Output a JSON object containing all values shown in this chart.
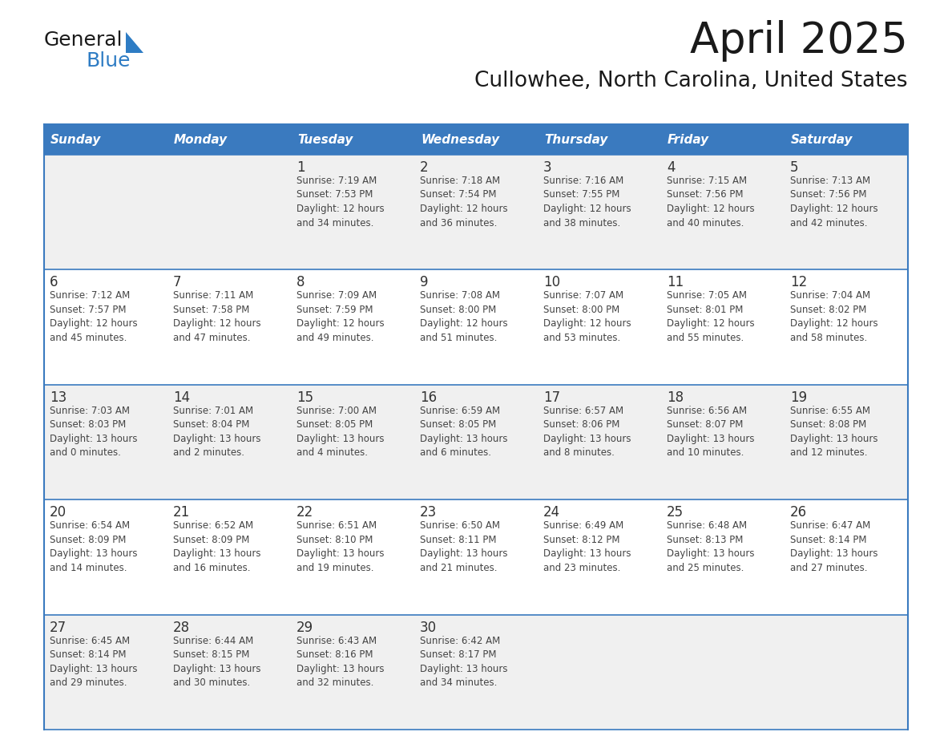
{
  "title": "April 2025",
  "subtitle": "Cullowhee, North Carolina, United States",
  "days_of_week": [
    "Sunday",
    "Monday",
    "Tuesday",
    "Wednesday",
    "Thursday",
    "Friday",
    "Saturday"
  ],
  "header_bg_color": "#3a7abf",
  "header_text_color": "#ffffff",
  "cell_bg_even": "#f0f0f0",
  "cell_bg_odd": "#ffffff",
  "cell_border_color": "#3a7abf",
  "day_number_color": "#333333",
  "cell_text_color": "#444444",
  "logo_general_color": "#1a1a1a",
  "logo_blue_color": "#2e7cc4",
  "title_color": "#1a1a1a",
  "subtitle_color": "#1a1a1a",
  "calendar_data": [
    [
      {
        "day": null,
        "info": ""
      },
      {
        "day": null,
        "info": ""
      },
      {
        "day": 1,
        "info": "Sunrise: 7:19 AM\nSunset: 7:53 PM\nDaylight: 12 hours\nand 34 minutes."
      },
      {
        "day": 2,
        "info": "Sunrise: 7:18 AM\nSunset: 7:54 PM\nDaylight: 12 hours\nand 36 minutes."
      },
      {
        "day": 3,
        "info": "Sunrise: 7:16 AM\nSunset: 7:55 PM\nDaylight: 12 hours\nand 38 minutes."
      },
      {
        "day": 4,
        "info": "Sunrise: 7:15 AM\nSunset: 7:56 PM\nDaylight: 12 hours\nand 40 minutes."
      },
      {
        "day": 5,
        "info": "Sunrise: 7:13 AM\nSunset: 7:56 PM\nDaylight: 12 hours\nand 42 minutes."
      }
    ],
    [
      {
        "day": 6,
        "info": "Sunrise: 7:12 AM\nSunset: 7:57 PM\nDaylight: 12 hours\nand 45 minutes."
      },
      {
        "day": 7,
        "info": "Sunrise: 7:11 AM\nSunset: 7:58 PM\nDaylight: 12 hours\nand 47 minutes."
      },
      {
        "day": 8,
        "info": "Sunrise: 7:09 AM\nSunset: 7:59 PM\nDaylight: 12 hours\nand 49 minutes."
      },
      {
        "day": 9,
        "info": "Sunrise: 7:08 AM\nSunset: 8:00 PM\nDaylight: 12 hours\nand 51 minutes."
      },
      {
        "day": 10,
        "info": "Sunrise: 7:07 AM\nSunset: 8:00 PM\nDaylight: 12 hours\nand 53 minutes."
      },
      {
        "day": 11,
        "info": "Sunrise: 7:05 AM\nSunset: 8:01 PM\nDaylight: 12 hours\nand 55 minutes."
      },
      {
        "day": 12,
        "info": "Sunrise: 7:04 AM\nSunset: 8:02 PM\nDaylight: 12 hours\nand 58 minutes."
      }
    ],
    [
      {
        "day": 13,
        "info": "Sunrise: 7:03 AM\nSunset: 8:03 PM\nDaylight: 13 hours\nand 0 minutes."
      },
      {
        "day": 14,
        "info": "Sunrise: 7:01 AM\nSunset: 8:04 PM\nDaylight: 13 hours\nand 2 minutes."
      },
      {
        "day": 15,
        "info": "Sunrise: 7:00 AM\nSunset: 8:05 PM\nDaylight: 13 hours\nand 4 minutes."
      },
      {
        "day": 16,
        "info": "Sunrise: 6:59 AM\nSunset: 8:05 PM\nDaylight: 13 hours\nand 6 minutes."
      },
      {
        "day": 17,
        "info": "Sunrise: 6:57 AM\nSunset: 8:06 PM\nDaylight: 13 hours\nand 8 minutes."
      },
      {
        "day": 18,
        "info": "Sunrise: 6:56 AM\nSunset: 8:07 PM\nDaylight: 13 hours\nand 10 minutes."
      },
      {
        "day": 19,
        "info": "Sunrise: 6:55 AM\nSunset: 8:08 PM\nDaylight: 13 hours\nand 12 minutes."
      }
    ],
    [
      {
        "day": 20,
        "info": "Sunrise: 6:54 AM\nSunset: 8:09 PM\nDaylight: 13 hours\nand 14 minutes."
      },
      {
        "day": 21,
        "info": "Sunrise: 6:52 AM\nSunset: 8:09 PM\nDaylight: 13 hours\nand 16 minutes."
      },
      {
        "day": 22,
        "info": "Sunrise: 6:51 AM\nSunset: 8:10 PM\nDaylight: 13 hours\nand 19 minutes."
      },
      {
        "day": 23,
        "info": "Sunrise: 6:50 AM\nSunset: 8:11 PM\nDaylight: 13 hours\nand 21 minutes."
      },
      {
        "day": 24,
        "info": "Sunrise: 6:49 AM\nSunset: 8:12 PM\nDaylight: 13 hours\nand 23 minutes."
      },
      {
        "day": 25,
        "info": "Sunrise: 6:48 AM\nSunset: 8:13 PM\nDaylight: 13 hours\nand 25 minutes."
      },
      {
        "day": 26,
        "info": "Sunrise: 6:47 AM\nSunset: 8:14 PM\nDaylight: 13 hours\nand 27 minutes."
      }
    ],
    [
      {
        "day": 27,
        "info": "Sunrise: 6:45 AM\nSunset: 8:14 PM\nDaylight: 13 hours\nand 29 minutes."
      },
      {
        "day": 28,
        "info": "Sunrise: 6:44 AM\nSunset: 8:15 PM\nDaylight: 13 hours\nand 30 minutes."
      },
      {
        "day": 29,
        "info": "Sunrise: 6:43 AM\nSunset: 8:16 PM\nDaylight: 13 hours\nand 32 minutes."
      },
      {
        "day": 30,
        "info": "Sunrise: 6:42 AM\nSunset: 8:17 PM\nDaylight: 13 hours\nand 34 minutes."
      },
      {
        "day": null,
        "info": ""
      },
      {
        "day": null,
        "info": ""
      },
      {
        "day": null,
        "info": ""
      }
    ]
  ]
}
